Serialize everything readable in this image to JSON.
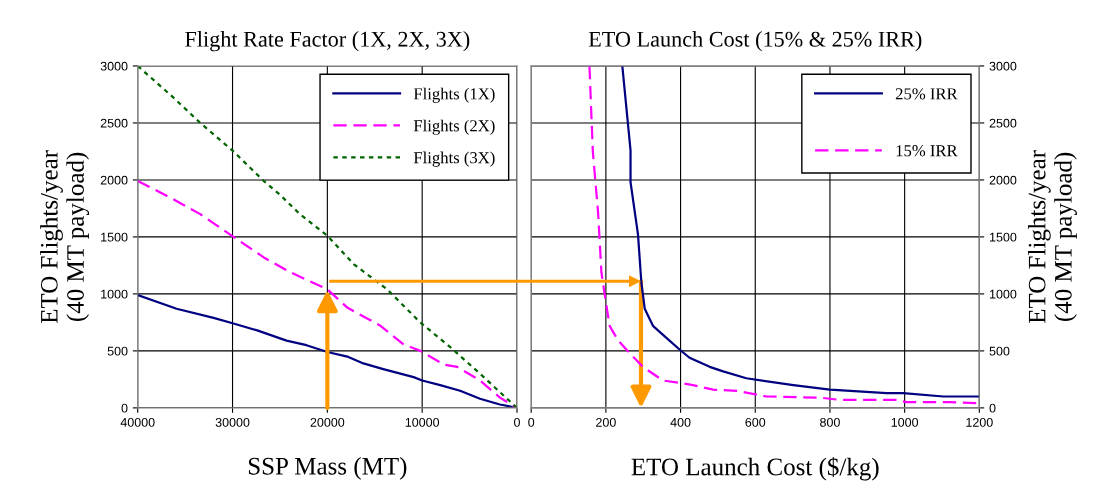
{
  "chart_data": [
    {
      "type": "line",
      "title": "Flight Rate Factor (1X, 2X, 3X)",
      "xlabel": "SSP Mass (MT)",
      "ylabel": "ETO Flights/year\n(40 MT payload)",
      "xlim": [
        40000,
        0
      ],
      "xticks": [
        40000,
        30000,
        20000,
        10000,
        0
      ],
      "ylim": [
        0,
        3000
      ],
      "yticks": [
        0,
        500,
        1000,
        1500,
        2000,
        2500,
        3000
      ],
      "grid": true,
      "legend": "top right",
      "series": [
        {
          "name": "Flights (1X)",
          "color": "#000080",
          "line_style": "solid",
          "x": [
            40000,
            35900,
            32000,
            29900,
            27400,
            24300,
            22200,
            20000,
            17900,
            16200,
            14100,
            12300,
            10900,
            10000,
            8100,
            6000,
            3900,
            1800,
            0
          ],
          "values": [
            990,
            870,
            790,
            740,
            680,
            590,
            550,
            490,
            450,
            390,
            340,
            300,
            270,
            240,
            200,
            150,
            80,
            30,
            0
          ]
        },
        {
          "name": "Flights (2X)",
          "color": "#ff00ff",
          "line_style": "dashed",
          "x": [
            40000,
            36900,
            33400,
            29900,
            26700,
            23900,
            20000,
            17900,
            14400,
            12000,
            10200,
            7700,
            6300,
            3900,
            1800,
            0
          ],
          "values": [
            1990,
            1860,
            1700,
            1500,
            1320,
            1190,
            1040,
            880,
            720,
            560,
            500,
            380,
            360,
            240,
            90,
            0
          ]
        },
        {
          "name": "Flights (3X)",
          "color": "#006400",
          "line_style": "dotted",
          "x": [
            40000,
            36200,
            33400,
            29900,
            26700,
            25000,
            22900,
            20000,
            17200,
            13700,
            10200,
            7000,
            3900,
            0
          ],
          "values": [
            3000,
            2720,
            2500,
            2250,
            1990,
            1870,
            1700,
            1510,
            1260,
            1040,
            750,
            530,
            300,
            0
          ]
        }
      ]
    },
    {
      "type": "line",
      "title": "ETO Launch Cost (15% & 25% IRR)",
      "xlabel": "ETO Launch Cost ($/kg)",
      "y2label": "ETO Flights/year\n(40 MT payload)",
      "xlim": [
        0,
        1200
      ],
      "xticks": [
        0,
        200,
        400,
        600,
        800,
        1000,
        1200
      ],
      "y2lim": [
        0,
        3000
      ],
      "y2ticks": [
        0,
        500,
        1000,
        1500,
        2000,
        2500,
        3000
      ],
      "grid": true,
      "legend": "top right",
      "series": [
        {
          "name": "25% IRR",
          "color": "#000080",
          "line_style": "solid",
          "axis": "y2",
          "x": [
            244,
            266,
            266,
            286,
            295,
            304,
            326,
            353,
            398,
            424,
            478,
            514,
            576,
            702,
            800,
            952,
            996,
            1104,
            1200
          ],
          "values": [
            3000,
            2260,
            1980,
            1520,
            1100,
            870,
            720,
            640,
            510,
            440,
            360,
            320,
            260,
            200,
            160,
            130,
            130,
            100,
            100
          ]
        },
        {
          "name": "15% IRR",
          "color": "#ff00ff",
          "line_style": "dashed",
          "axis": "y2",
          "x": [
            156,
            165,
            179,
            188,
            197,
            210,
            233,
            264,
            299,
            353,
            398,
            433,
            487,
            550,
            630,
            773,
            827,
            978,
            1005,
            1121,
            1200
          ],
          "values": [
            3000,
            2250,
            1720,
            1190,
            990,
            720,
            590,
            480,
            360,
            240,
            220,
            200,
            160,
            150,
            100,
            90,
            70,
            70,
            50,
            50,
            40
          ]
        }
      ]
    }
  ]
}
